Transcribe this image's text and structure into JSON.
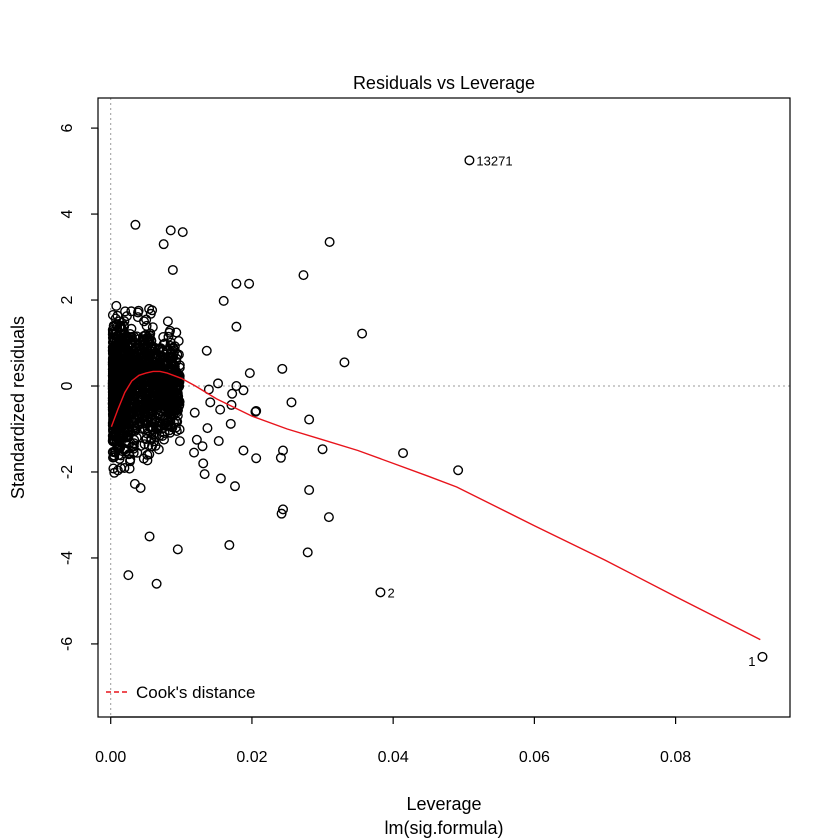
{
  "chart_data": {
    "type": "scatter",
    "title": "Residuals vs Leverage",
    "xlabel": "Leverage",
    "xlabel_sub": "lm(sig.formula)",
    "ylabel": "Standardized residuals",
    "xlim": [
      -0.0018,
      0.0962
    ],
    "ylim": [
      -7.7,
      6.7
    ],
    "x_ticks": [
      0.0,
      0.02,
      0.04,
      0.06,
      0.08
    ],
    "x_tick_labels": [
      "0.00",
      "0.02",
      "0.04",
      "0.06",
      "0.08"
    ],
    "y_ticks": [
      -6,
      -4,
      -2,
      0,
      2,
      4,
      6
    ],
    "y_tick_labels": [
      "-6",
      "-4",
      "-2",
      "0",
      "2",
      "4",
      "6"
    ],
    "reference_lines": {
      "x": 0,
      "y": 0,
      "style": "dotted",
      "color": "#9a9a9a"
    },
    "series": [
      {
        "name": "Cook's distance",
        "kind": "smooth-line",
        "color": "#e8141c",
        "x": [
          0.0001,
          0.001,
          0.002,
          0.003,
          0.004,
          0.005,
          0.006,
          0.007,
          0.008,
          0.01,
          0.012,
          0.015,
          0.02,
          0.025,
          0.03,
          0.035,
          0.04,
          0.045,
          0.049,
          0.06,
          0.07,
          0.08,
          0.092
        ],
        "y": [
          -0.95,
          -0.55,
          -0.15,
          0.12,
          0.25,
          0.3,
          0.34,
          0.34,
          0.3,
          0.18,
          0.0,
          -0.3,
          -0.7,
          -1.0,
          -1.25,
          -1.5,
          -1.8,
          -2.1,
          -2.35,
          -3.25,
          -4.05,
          -4.9,
          -5.9
        ]
      }
    ],
    "points": {
      "cluster_description": "dense cloud of open circles for leverage 0.000-0.010",
      "cluster": {
        "x_range": [
          0.0,
          0.01
        ],
        "y_range": [
          -3.9,
          3.7
        ],
        "count": 1500
      },
      "outliers": [
        {
          "x": 0.0025,
          "y": -4.4
        },
        {
          "x": 0.0065,
          "y": -4.6
        },
        {
          "x": 0.0035,
          "y": 3.75
        },
        {
          "x": 0.0085,
          "y": 3.62
        },
        {
          "x": 0.0102,
          "y": 3.58
        },
        {
          "x": 0.0075,
          "y": 3.3
        },
        {
          "x": 0.0095,
          "y": -3.8
        },
        {
          "x": 0.0055,
          "y": -3.5
        },
        {
          "x": 0.016,
          "y": 1.98
        },
        {
          "x": 0.0178,
          "y": 2.38
        },
        {
          "x": 0.0196,
          "y": 2.38
        },
        {
          "x": 0.0178,
          "y": 1.38
        },
        {
          "x": 0.0136,
          "y": 0.82
        },
        {
          "x": 0.0152,
          "y": 0.06
        },
        {
          "x": 0.0139,
          "y": -0.08
        },
        {
          "x": 0.0141,
          "y": -0.38
        },
        {
          "x": 0.0171,
          "y": -0.44
        },
        {
          "x": 0.017,
          "y": -0.88
        },
        {
          "x": 0.0172,
          "y": -0.18
        },
        {
          "x": 0.0178,
          "y": 0.0
        },
        {
          "x": 0.0188,
          "y": -0.1
        },
        {
          "x": 0.0137,
          "y": -0.98
        },
        {
          "x": 0.0155,
          "y": -0.55
        },
        {
          "x": 0.0119,
          "y": -0.62
        },
        {
          "x": 0.0122,
          "y": -1.25
        },
        {
          "x": 0.013,
          "y": -1.4
        },
        {
          "x": 0.0131,
          "y": -1.8
        },
        {
          "x": 0.0133,
          "y": -2.05
        },
        {
          "x": 0.0153,
          "y": -1.28
        },
        {
          "x": 0.0118,
          "y": -1.55
        },
        {
          "x": 0.0156,
          "y": -2.15
        },
        {
          "x": 0.0188,
          "y": -1.5
        },
        {
          "x": 0.0176,
          "y": -2.33
        },
        {
          "x": 0.0206,
          "y": -1.68
        },
        {
          "x": 0.0205,
          "y": -0.6
        },
        {
          "x": 0.0206,
          "y": -0.58
        },
        {
          "x": 0.0244,
          "y": -1.5
        },
        {
          "x": 0.0241,
          "y": -1.67
        },
        {
          "x": 0.0244,
          "y": -2.87
        },
        {
          "x": 0.0242,
          "y": -2.97
        },
        {
          "x": 0.0197,
          "y": 0.3
        },
        {
          "x": 0.0243,
          "y": 0.4
        },
        {
          "x": 0.0256,
          "y": -0.38
        },
        {
          "x": 0.0281,
          "y": -0.78
        },
        {
          "x": 0.0273,
          "y": 2.58
        },
        {
          "x": 0.0281,
          "y": -2.42
        },
        {
          "x": 0.0279,
          "y": -3.87
        },
        {
          "x": 0.03,
          "y": -1.47
        },
        {
          "x": 0.031,
          "y": 3.35
        },
        {
          "x": 0.0309,
          "y": -3.05
        },
        {
          "x": 0.0331,
          "y": 0.55
        },
        {
          "x": 0.0356,
          "y": 1.22
        },
        {
          "x": 0.0414,
          "y": -1.56
        },
        {
          "x": 0.0492,
          "y": -1.96
        },
        {
          "x": 0.0168,
          "y": -3.7
        },
        {
          "x": 0.0088,
          "y": 2.7
        }
      ],
      "labeled": [
        {
          "x": 0.0508,
          "y": 5.25,
          "label": "13271",
          "label_side": "right"
        },
        {
          "x": 0.0382,
          "y": -4.8,
          "label": "2",
          "label_side": "right"
        },
        {
          "x": 0.0923,
          "y": -6.3,
          "label": "1",
          "label_side": "left"
        }
      ]
    },
    "legend": {
      "placement": "bottom-left",
      "entries": [
        "Cook's distance"
      ]
    },
    "grid": false
  }
}
